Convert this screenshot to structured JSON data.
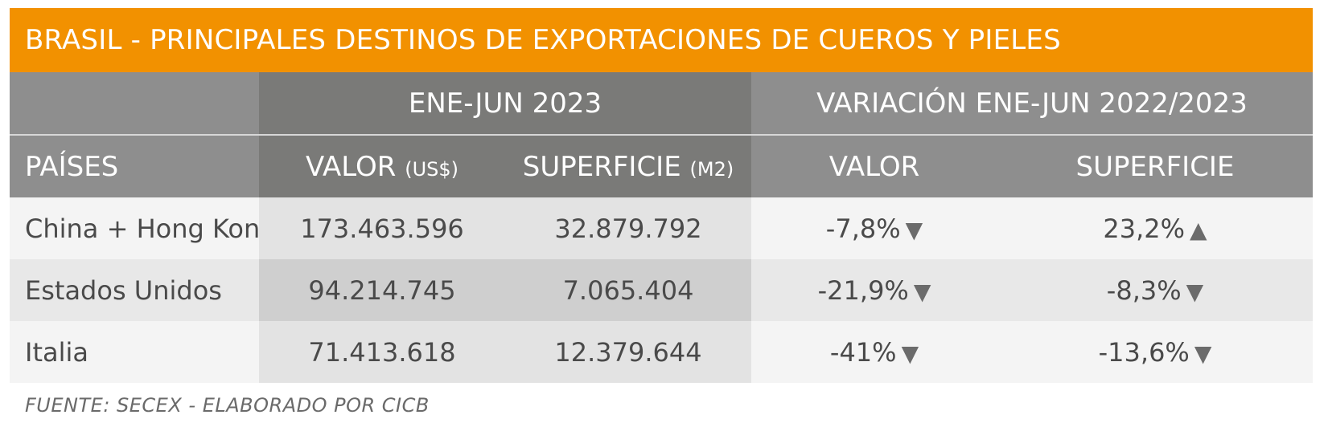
{
  "title": "BRASIL - PRINCIPALES DESTINOS DE EXPORTACIONES DE CUEROS Y PIELES",
  "header": {
    "group1": "ENE-JUN 2023",
    "group2": "VARIACIÓN ENE-JUN 2022/2023",
    "paises": "PAÍSES",
    "valor": "VALOR",
    "valor_unit": "(US$)",
    "superficie": "SUPERFICIE",
    "superficie_unit": "(M2)",
    "var_valor": "VALOR",
    "var_superficie": "SUPERFICIE"
  },
  "rows": [
    {
      "pais": "China + Hong Kong",
      "valor": "173.463.596",
      "superficie": "32.879.792",
      "var_valor": "-7,8%",
      "var_valor_arrow": "▼",
      "var_superficie": "23,2%",
      "var_superficie_arrow": "▲"
    },
    {
      "pais": "Estados Unidos",
      "valor": "94.214.745",
      "superficie": "7.065.404",
      "var_valor": "-21,9%",
      "var_valor_arrow": "▼",
      "var_superficie": "-8,3%",
      "var_superficie_arrow": "▼"
    },
    {
      "pais": "Italia",
      "valor": "71.413.618",
      "superficie": "12.379.644",
      "var_valor": "-41%",
      "var_valor_arrow": "▼",
      "var_superficie": "-13,6%",
      "var_superficie_arrow": "▼"
    }
  ],
  "source": "FUENTE: SECEX - ELABORADO POR CICB",
  "colors": {
    "title_bg": "#f29100",
    "header_dark": "#7a7a78",
    "header_light": "#8e8e8e"
  }
}
